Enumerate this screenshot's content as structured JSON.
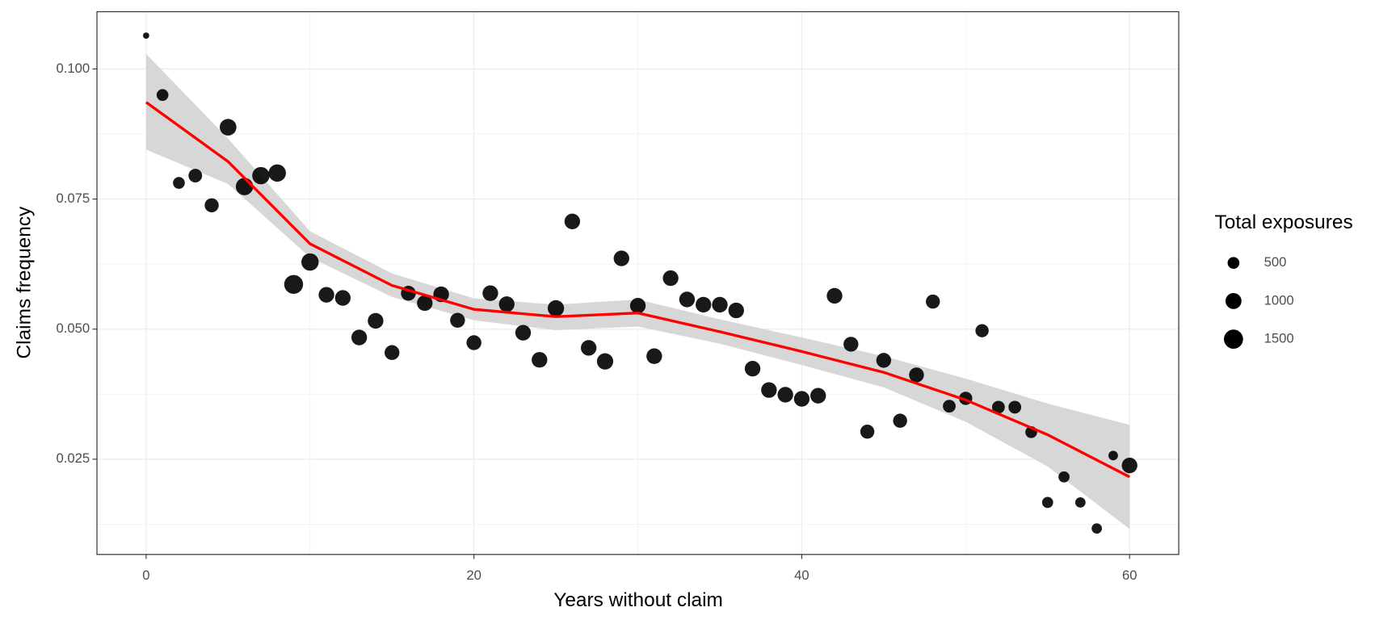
{
  "chart_data": {
    "type": "scatter",
    "xlabel": "Years without claim",
    "ylabel": "Claims frequency",
    "x": [
      0,
      1,
      2,
      3,
      4,
      5,
      6,
      7,
      8,
      9,
      10,
      11,
      12,
      13,
      14,
      15,
      16,
      17,
      18,
      19,
      20,
      21,
      22,
      23,
      24,
      25,
      26,
      27,
      28,
      29,
      30,
      31,
      32,
      33,
      34,
      35,
      36,
      37,
      38,
      39,
      40,
      41,
      42,
      43,
      44,
      45,
      46,
      47,
      48,
      49,
      50,
      51,
      52,
      53,
      54,
      55,
      56,
      57,
      58,
      59,
      60
    ],
    "values": [
      0.1064,
      0.095,
      0.0781,
      0.0795,
      0.0738,
      0.0888,
      0.0774,
      0.0795,
      0.08,
      0.0586,
      0.0629,
      0.0566,
      0.056,
      0.0484,
      0.0516,
      0.0455,
      0.0569,
      0.055,
      0.0567,
      0.0517,
      0.0474,
      0.0569,
      0.0548,
      0.0493,
      0.0441,
      0.054,
      0.0707,
      0.0464,
      0.0438,
      0.0636,
      0.0545,
      0.0448,
      0.0598,
      0.0557,
      0.0547,
      0.0547,
      0.0536,
      0.0424,
      0.0383,
      0.0374,
      0.0366,
      0.0372,
      0.0564,
      0.0471,
      0.0303,
      0.044,
      0.0324,
      0.0412,
      0.0553,
      0.0352,
      0.0367,
      0.0497,
      0.035,
      0.035,
      0.0302,
      0.0167,
      0.0216,
      0.0167,
      0.0117,
      0.0257,
      0.0238
    ],
    "sizes": [
      100,
      500,
      500,
      700,
      750,
      1100,
      1200,
      1200,
      1200,
      1450,
      1200,
      950,
      950,
      950,
      950,
      850,
      850,
      950,
      950,
      850,
      850,
      950,
      950,
      950,
      950,
      1050,
      950,
      950,
      1050,
      950,
      950,
      950,
      950,
      950,
      950,
      950,
      950,
      950,
      950,
      950,
      950,
      950,
      950,
      850,
      750,
      850,
      750,
      850,
      750,
      600,
      650,
      650,
      600,
      600,
      500,
      430,
      430,
      360,
      360,
      300,
      950
    ],
    "color": "#000000",
    "smooth": {
      "color": "#ff0000",
      "band_color": "#d3d3d3",
      "x": [
        0,
        5,
        10,
        15,
        20,
        25,
        30,
        35,
        40,
        45,
        50,
        55,
        60
      ],
      "values": [
        0.0936,
        0.0822,
        0.0664,
        0.0584,
        0.0538,
        0.0524,
        0.0531,
        0.0495,
        0.0457,
        0.0417,
        0.0364,
        0.0297,
        0.0216
      ],
      "lower": [
        0.0845,
        0.0779,
        0.0638,
        0.0562,
        0.0517,
        0.0498,
        0.0505,
        0.0472,
        0.0431,
        0.0388,
        0.0322,
        0.0236,
        0.0116
      ],
      "upper": [
        0.1029,
        0.0866,
        0.0688,
        0.0607,
        0.0559,
        0.0547,
        0.0557,
        0.0519,
        0.0484,
        0.0448,
        0.0405,
        0.0357,
        0.0316
      ]
    },
    "xlim": [
      -3,
      63
    ],
    "ylim": [
      0.0067,
      0.111
    ],
    "xticks": [
      0,
      20,
      40,
      60
    ],
    "yticks": [
      {
        "value": 0.1,
        "label": "0.100"
      },
      {
        "value": 0.075,
        "label": "0.075"
      },
      {
        "value": 0.05,
        "label": "0.050"
      },
      {
        "value": 0.025,
        "label": "0.025"
      }
    ],
    "xminor": [
      10,
      30,
      50
    ],
    "yminor": [
      0.0875,
      0.0625,
      0.0375,
      0.0125
    ],
    "grid": true,
    "legend": {
      "title": "Total exposures",
      "position": "right",
      "sizes": [
        500,
        1000,
        1500
      ]
    }
  }
}
